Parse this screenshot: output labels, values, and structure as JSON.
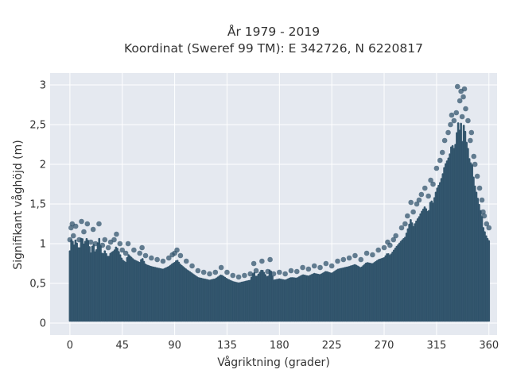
{
  "chart_data": {
    "type": "scatter",
    "title": "År 1979 - 2019",
    "subtitle": "Koordinat (Sweref 99 TM): E 342726, N 6220817",
    "xlabel": "Vågriktning (grader)",
    "ylabel": "Signifikant våghöjd (m)",
    "xlim": [
      -17,
      367
    ],
    "ylim": [
      -0.15,
      3.15
    ],
    "x_ticks": [
      {
        "value": 0,
        "label": "0"
      },
      {
        "value": 45,
        "label": "45"
      },
      {
        "value": 90,
        "label": "90"
      },
      {
        "value": 135,
        "label": "135"
      },
      {
        "value": 180,
        "label": "180"
      },
      {
        "value": 225,
        "label": "225"
      },
      {
        "value": 270,
        "label": "270"
      },
      {
        "value": 315,
        "label": "315"
      },
      {
        "value": 360,
        "label": "360"
      }
    ],
    "y_ticks": [
      {
        "value": 0,
        "label": "0"
      },
      {
        "value": 0.5,
        "label": "0,5"
      },
      {
        "value": 1,
        "label": "1"
      },
      {
        "value": 1.5,
        "label": "1,5"
      },
      {
        "value": 2,
        "label": "2"
      },
      {
        "value": 2.5,
        "label": "2,5"
      },
      {
        "value": 3,
        "label": "3"
      }
    ],
    "grid": true,
    "legend": "none",
    "colors": {
      "marker": "#2e5169",
      "plot_bg": "#e5e9f0",
      "grid": "#ffffff"
    },
    "series": [
      {
        "points": [
          [
            0,
            1.05
          ],
          [
            1,
            1.2
          ],
          [
            2,
            1.25
          ],
          [
            3,
            1.1
          ],
          [
            5,
            1.22
          ],
          [
            8,
            1.05
          ],
          [
            10,
            1.28
          ],
          [
            12,
            1.15
          ],
          [
            15,
            1.25
          ],
          [
            18,
            1.02
          ],
          [
            20,
            1.18
          ],
          [
            22,
            1.0
          ],
          [
            25,
            1.25
          ],
          [
            28,
            0.98
          ],
          [
            30,
            1.05
          ],
          [
            33,
            0.95
          ],
          [
            35,
            1.02
          ],
          [
            38,
            1.05
          ],
          [
            40,
            1.12
          ],
          [
            43,
            1.0
          ],
          [
            45,
            0.92
          ],
          [
            48,
            0.88
          ],
          [
            50,
            1.0
          ],
          [
            55,
            0.92
          ],
          [
            60,
            0.88
          ],
          [
            62,
            0.95
          ],
          [
            65,
            0.85
          ],
          [
            70,
            0.82
          ],
          [
            75,
            0.8
          ],
          [
            80,
            0.78
          ],
          [
            85,
            0.82
          ],
          [
            88,
            0.86
          ],
          [
            90,
            0.88
          ],
          [
            92,
            0.92
          ],
          [
            95,
            0.85
          ],
          [
            100,
            0.78
          ],
          [
            105,
            0.72
          ],
          [
            110,
            0.66
          ],
          [
            115,
            0.64
          ],
          [
            120,
            0.62
          ],
          [
            125,
            0.64
          ],
          [
            130,
            0.7
          ],
          [
            135,
            0.64
          ],
          [
            140,
            0.6
          ],
          [
            145,
            0.58
          ],
          [
            150,
            0.6
          ],
          [
            155,
            0.62
          ],
          [
            158,
            0.75
          ],
          [
            160,
            0.66
          ],
          [
            165,
            0.78
          ],
          [
            170,
            0.65
          ],
          [
            172,
            0.8
          ],
          [
            175,
            0.62
          ],
          [
            180,
            0.64
          ],
          [
            185,
            0.62
          ],
          [
            190,
            0.66
          ],
          [
            195,
            0.65
          ],
          [
            200,
            0.7
          ],
          [
            205,
            0.68
          ],
          [
            210,
            0.72
          ],
          [
            215,
            0.7
          ],
          [
            220,
            0.75
          ],
          [
            225,
            0.72
          ],
          [
            230,
            0.78
          ],
          [
            235,
            0.8
          ],
          [
            240,
            0.82
          ],
          [
            245,
            0.85
          ],
          [
            250,
            0.8
          ],
          [
            255,
            0.88
          ],
          [
            260,
            0.86
          ],
          [
            265,
            0.92
          ],
          [
            270,
            0.95
          ],
          [
            273,
            1.02
          ],
          [
            275,
            0.98
          ],
          [
            278,
            1.05
          ],
          [
            280,
            1.1
          ],
          [
            285,
            1.2
          ],
          [
            288,
            1.25
          ],
          [
            290,
            1.35
          ],
          [
            293,
            1.52
          ],
          [
            295,
            1.4
          ],
          [
            298,
            1.5
          ],
          [
            300,
            1.55
          ],
          [
            302,
            1.62
          ],
          [
            305,
            1.7
          ],
          [
            308,
            1.6
          ],
          [
            310,
            1.8
          ],
          [
            312,
            1.75
          ],
          [
            315,
            1.95
          ],
          [
            318,
            2.05
          ],
          [
            320,
            2.15
          ],
          [
            322,
            2.3
          ],
          [
            325,
            2.4
          ],
          [
            327,
            2.5
          ],
          [
            328,
            2.62
          ],
          [
            330,
            2.55
          ],
          [
            332,
            2.65
          ],
          [
            333,
            2.98
          ],
          [
            335,
            2.8
          ],
          [
            336,
            2.92
          ],
          [
            337,
            2.6
          ],
          [
            338,
            2.85
          ],
          [
            339,
            2.95
          ],
          [
            340,
            2.7
          ],
          [
            342,
            2.55
          ],
          [
            344,
            2.3
          ],
          [
            345,
            2.4
          ],
          [
            347,
            2.1
          ],
          [
            348,
            2.0
          ],
          [
            350,
            1.85
          ],
          [
            352,
            1.7
          ],
          [
            354,
            1.55
          ],
          [
            355,
            1.4
          ],
          [
            356,
            1.35
          ],
          [
            358,
            1.25
          ],
          [
            360,
            1.2
          ]
        ]
      }
    ]
  }
}
